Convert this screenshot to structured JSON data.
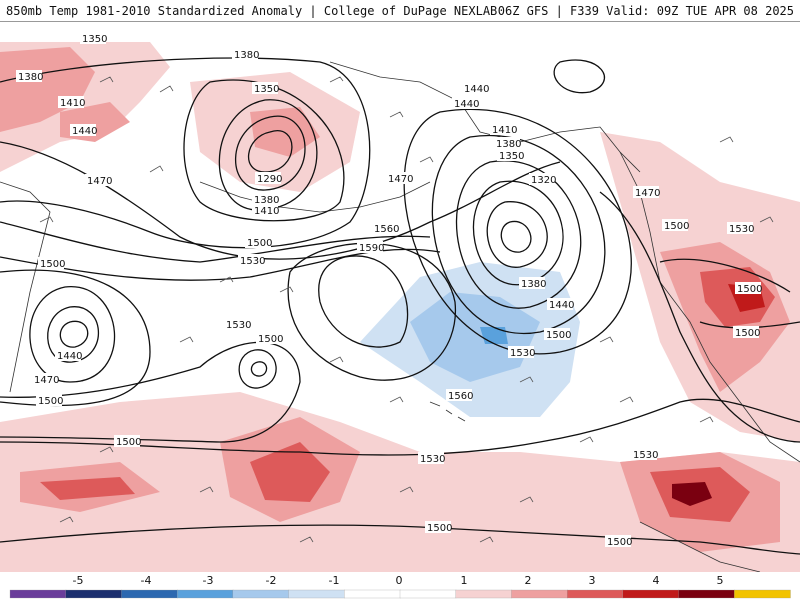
{
  "header": {
    "title": "850mb Temp 1981-2010 Standardized Anomaly | College of DuPage NEXLAB",
    "run_info": "06Z GFS | F339 Valid: 09Z TUE APR 08 2025"
  },
  "colors": {
    "background": "#ffffff",
    "contour": "#111111",
    "coast": "#333333",
    "barb": "#555555",
    "anom_pos_1": "#f6d2d2",
    "anom_pos_2": "#eea0a0",
    "anom_pos_3": "#dd5a5a",
    "anom_pos_4": "#c01a1a",
    "anom_pos_5": "#7a0010",
    "anom_neg_1": "#cfe1f3",
    "anom_neg_2": "#a6c9ec",
    "anom_neg_3": "#5aa1dc",
    "anom_neg_4": "#2c68b0",
    "anom_neg_5": "#1b2f6e"
  },
  "contour_labels": [
    {
      "value": "1350"
    },
    {
      "value": "1380"
    },
    {
      "value": "1380"
    },
    {
      "value": "1410"
    },
    {
      "value": "1440"
    },
    {
      "value": "1350"
    },
    {
      "value": "1290"
    },
    {
      "value": "1380"
    },
    {
      "value": "1410"
    },
    {
      "value": "1470"
    },
    {
      "value": "1500"
    },
    {
      "value": "1530"
    },
    {
      "value": "1470"
    },
    {
      "value": "1560"
    },
    {
      "value": "1590"
    },
    {
      "value": "1440"
    },
    {
      "value": "1440"
    },
    {
      "value": "1410"
    },
    {
      "value": "1380"
    },
    {
      "value": "1350"
    },
    {
      "value": "1320"
    },
    {
      "value": "1380"
    },
    {
      "value": "1440"
    },
    {
      "value": "1500"
    },
    {
      "value": "1530"
    },
    {
      "value": "1470"
    },
    {
      "value": "1500"
    },
    {
      "value": "1530"
    },
    {
      "value": "1500"
    },
    {
      "value": "1500"
    },
    {
      "value": "1500"
    },
    {
      "value": "1440"
    },
    {
      "value": "1470"
    },
    {
      "value": "1500"
    },
    {
      "value": "1530"
    },
    {
      "value": "1500"
    },
    {
      "value": "1560"
    },
    {
      "value": "1500"
    },
    {
      "value": "1530"
    },
    {
      "value": "1530"
    },
    {
      "value": "1500"
    },
    {
      "value": "1500"
    }
  ],
  "colorbar": {
    "ticks": [
      "-5",
      "-4",
      "-3",
      "-2",
      "-1",
      "0",
      "1",
      "2",
      "3",
      "4",
      "5"
    ],
    "segments": [
      "#6a3d9a",
      "#1b2f6e",
      "#2c68b0",
      "#5aa1dc",
      "#a6c9ec",
      "#cfe1f3",
      "#ffffff",
      "#ffffff",
      "#f6d2d2",
      "#eea0a0",
      "#dd5a5a",
      "#c01a1a",
      "#7a0010",
      "#f2c300"
    ]
  }
}
